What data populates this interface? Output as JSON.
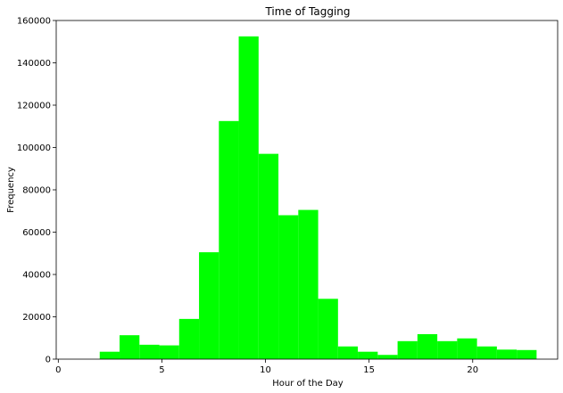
{
  "chart_data": {
    "type": "bar",
    "title": "Time of Tagging",
    "xlabel": "Hour of the Day",
    "ylabel": "Frequency",
    "xlim": [
      -0.1,
      24.1
    ],
    "ylim": [
      0,
      160000
    ],
    "x_ticks": [
      0,
      5,
      10,
      15,
      20
    ],
    "y_ticks": [
      0,
      20000,
      40000,
      60000,
      80000,
      100000,
      120000,
      140000,
      160000
    ],
    "grid": false,
    "color": "#00ff00",
    "bins": [
      {
        "start": 2.0,
        "end": 2.958,
        "value": 3500
      },
      {
        "start": 2.958,
        "end": 3.917,
        "value": 11300
      },
      {
        "start": 3.917,
        "end": 4.875,
        "value": 6800
      },
      {
        "start": 4.875,
        "end": 5.833,
        "value": 6500
      },
      {
        "start": 5.833,
        "end": 6.792,
        "value": 19000
      },
      {
        "start": 6.792,
        "end": 7.75,
        "value": 50500
      },
      {
        "start": 7.75,
        "end": 8.708,
        "value": 112500
      },
      {
        "start": 8.708,
        "end": 9.667,
        "value": 152500
      },
      {
        "start": 9.667,
        "end": 10.625,
        "value": 97000
      },
      {
        "start": 10.625,
        "end": 11.583,
        "value": 68000
      },
      {
        "start": 11.583,
        "end": 12.542,
        "value": 70500
      },
      {
        "start": 12.542,
        "end": 13.5,
        "value": 28500
      },
      {
        "start": 13.5,
        "end": 14.458,
        "value": 6000
      },
      {
        "start": 14.458,
        "end": 15.417,
        "value": 3500
      },
      {
        "start": 15.417,
        "end": 16.375,
        "value": 2000
      },
      {
        "start": 16.375,
        "end": 17.333,
        "value": 8500
      },
      {
        "start": 17.333,
        "end": 18.292,
        "value": 11800
      },
      {
        "start": 18.292,
        "end": 19.25,
        "value": 8500
      },
      {
        "start": 19.25,
        "end": 20.208,
        "value": 9800
      },
      {
        "start": 20.208,
        "end": 21.167,
        "value": 6000
      },
      {
        "start": 21.167,
        "end": 22.125,
        "value": 4500
      },
      {
        "start": 22.125,
        "end": 23.083,
        "value": 4300
      }
    ]
  }
}
